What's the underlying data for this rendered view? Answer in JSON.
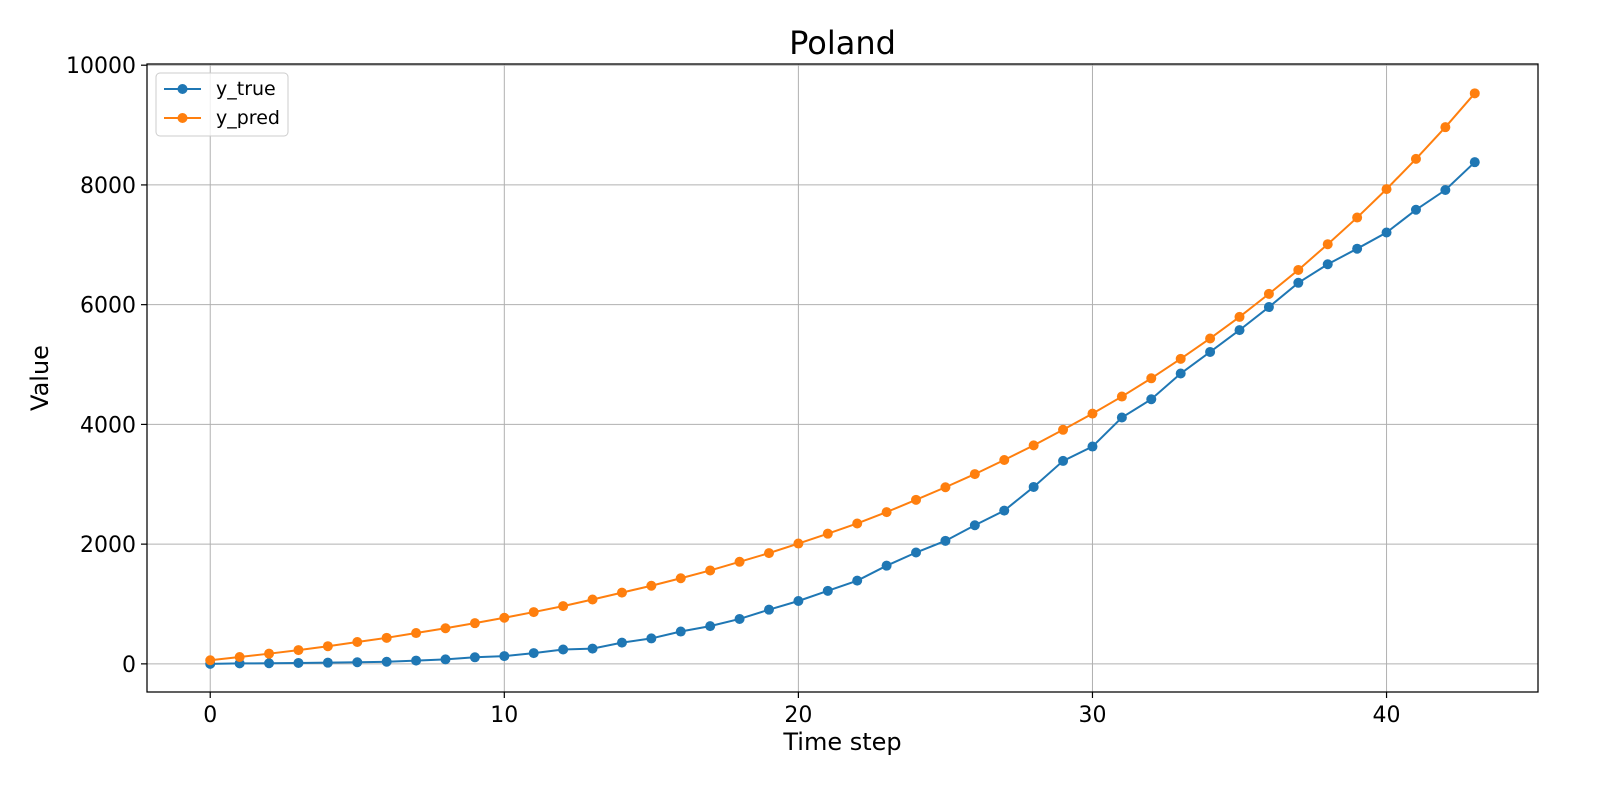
{
  "chart_data": {
    "type": "line",
    "title": "Poland",
    "xlabel": "Time step",
    "ylabel": "Value",
    "xlim": [
      -2.15,
      45.15
    ],
    "ylim": [
      -470,
      10020
    ],
    "xticks": [
      0,
      10,
      20,
      30,
      40
    ],
    "yticks": [
      0,
      2000,
      4000,
      6000,
      8000,
      10000
    ],
    "grid": true,
    "legend_position": "top-left",
    "x": [
      0,
      1,
      2,
      3,
      4,
      5,
      6,
      7,
      8,
      9,
      10,
      11,
      12,
      13,
      14,
      15,
      16,
      17,
      18,
      19,
      20,
      21,
      22,
      23,
      24,
      25,
      26,
      27,
      28,
      29,
      30,
      31,
      32,
      33,
      34,
      35,
      36,
      37,
      38,
      39,
      40,
      41,
      42,
      43
    ],
    "series": [
      {
        "name": "y_true",
        "color": "#1f77b4",
        "values": [
          0,
          8,
          10,
          15,
          20,
          27,
          35,
          55,
          75,
          110,
          130,
          180,
          240,
          255,
          355,
          425,
          540,
          630,
          750,
          905,
          1050,
          1220,
          1390,
          1640,
          1860,
          2055,
          2315,
          2560,
          2955,
          3390,
          3630,
          4115,
          4420,
          4850,
          5210,
          5575,
          5960,
          6365,
          6675,
          6935,
          7205,
          7585,
          7915,
          8380
        ]
      },
      {
        "name": "y_pred",
        "color": "#ff7f0e",
        "values": [
          60,
          115,
          170,
          230,
          295,
          365,
          435,
          515,
          595,
          680,
          770,
          865,
          965,
          1075,
          1190,
          1305,
          1430,
          1560,
          1705,
          1850,
          2010,
          2175,
          2345,
          2535,
          2740,
          2950,
          3170,
          3405,
          3650,
          3910,
          4180,
          4465,
          4770,
          5095,
          5435,
          5795,
          6180,
          6580,
          7010,
          7455,
          7930,
          8435,
          8965,
          9530
        ]
      }
    ]
  }
}
